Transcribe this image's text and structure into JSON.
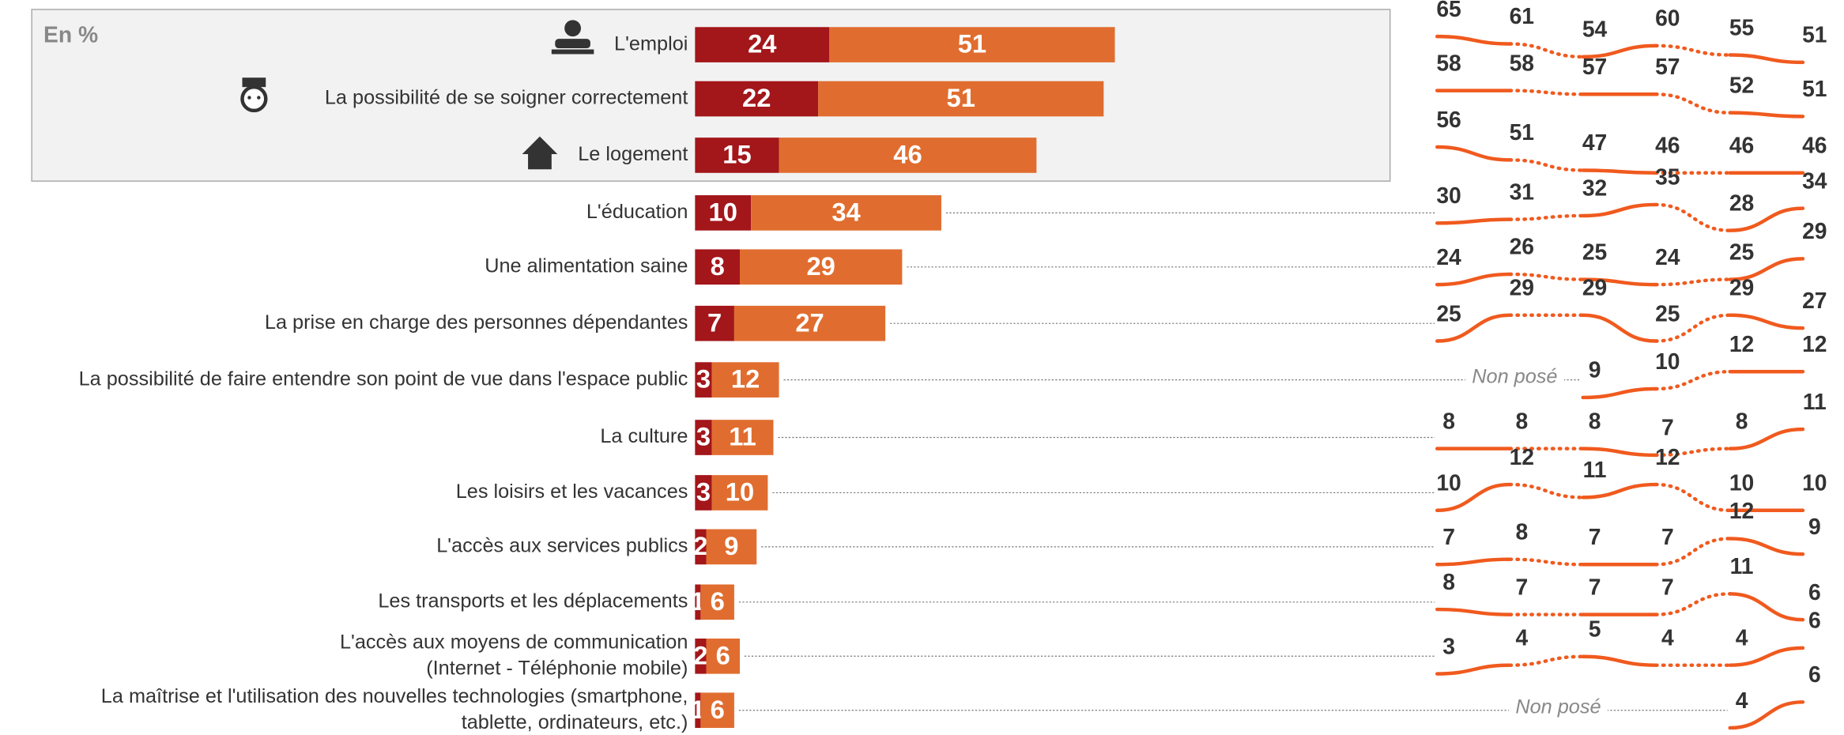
{
  "chart_data": {
    "type": "bar",
    "note": "En %",
    "categories": [
      "L'emploi",
      "La possibilité de se soigner correctement",
      "Le logement",
      "L'éducation",
      "Une alimentation saine",
      "La prise en charge des personnes dépendantes",
      "La possibilité de faire entendre son point de vue dans l'espace public",
      "La culture",
      "Les loisirs et les vacances",
      "L'accès aux services publics",
      "Les transports et les déplacements",
      [
        "L'accès aux moyens de communication",
        "(Internet - Téléphonie mobile)"
      ],
      [
        "La maîtrise et l'utilisation des nouvelles technologies (smartphone,",
        "tablette, ordinateurs, etc.)"
      ]
    ],
    "series": [
      {
        "color": "#a3161a",
        "values": [
          24,
          22,
          15,
          10,
          8,
          7,
          3,
          3,
          3,
          2,
          1,
          2,
          1
        ]
      },
      {
        "color": "#e06d2f",
        "values": [
          51,
          51,
          46,
          34,
          29,
          27,
          12,
          11,
          10,
          9,
          6,
          6,
          6
        ]
      }
    ],
    "trend_color": "#f05a1e",
    "not_asked_label": "Non posé",
    "trends": [
      [
        65,
        61,
        54,
        60,
        55,
        51
      ],
      [
        58,
        58,
        57,
        57,
        52,
        51
      ],
      [
        56,
        51,
        47,
        46,
        46,
        46
      ],
      [
        30,
        31,
        32,
        35,
        28,
        34
      ],
      [
        24,
        26,
        25,
        24,
        25,
        29
      ],
      [
        25,
        29,
        29,
        25,
        29,
        27
      ],
      [
        null,
        null,
        9,
        10,
        12,
        12
      ],
      [
        8,
        8,
        8,
        7,
        8,
        11
      ],
      [
        10,
        12,
        11,
        12,
        10,
        10
      ],
      [
        7,
        8,
        7,
        7,
        12,
        9
      ],
      [
        8,
        7,
        7,
        7,
        11,
        6
      ],
      [
        3,
        4,
        5,
        4,
        4,
        6
      ],
      [
        null,
        null,
        null,
        null,
        4,
        6
      ]
    ]
  }
}
